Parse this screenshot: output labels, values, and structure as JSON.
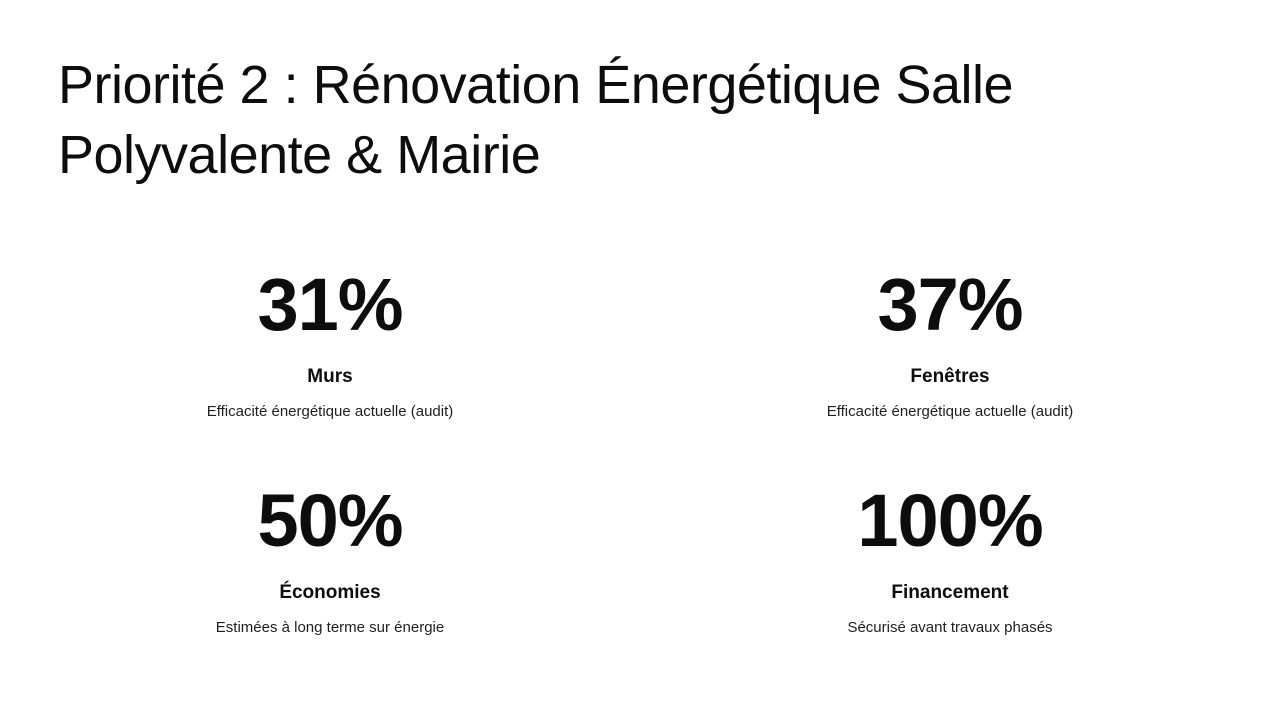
{
  "slide": {
    "title": "Priorité 2 : Rénovation Énergétique Salle Polyvalente & Mairie",
    "colors": {
      "background": "#ffffff",
      "text": "#0d0d0d",
      "description_text": "#1f1f1f"
    },
    "stats": [
      {
        "value": "31%",
        "label": "Murs",
        "description": "Efficacité énergétique actuelle (audit)"
      },
      {
        "value": "37%",
        "label": "Fenêtres",
        "description": "Efficacité énergétique actuelle (audit)"
      },
      {
        "value": "50%",
        "label": "Économies",
        "description": "Estimées à long terme sur énergie"
      },
      {
        "value": "100%",
        "label": "Financement",
        "description": "Sécurisé avant travaux phasés"
      }
    ]
  }
}
